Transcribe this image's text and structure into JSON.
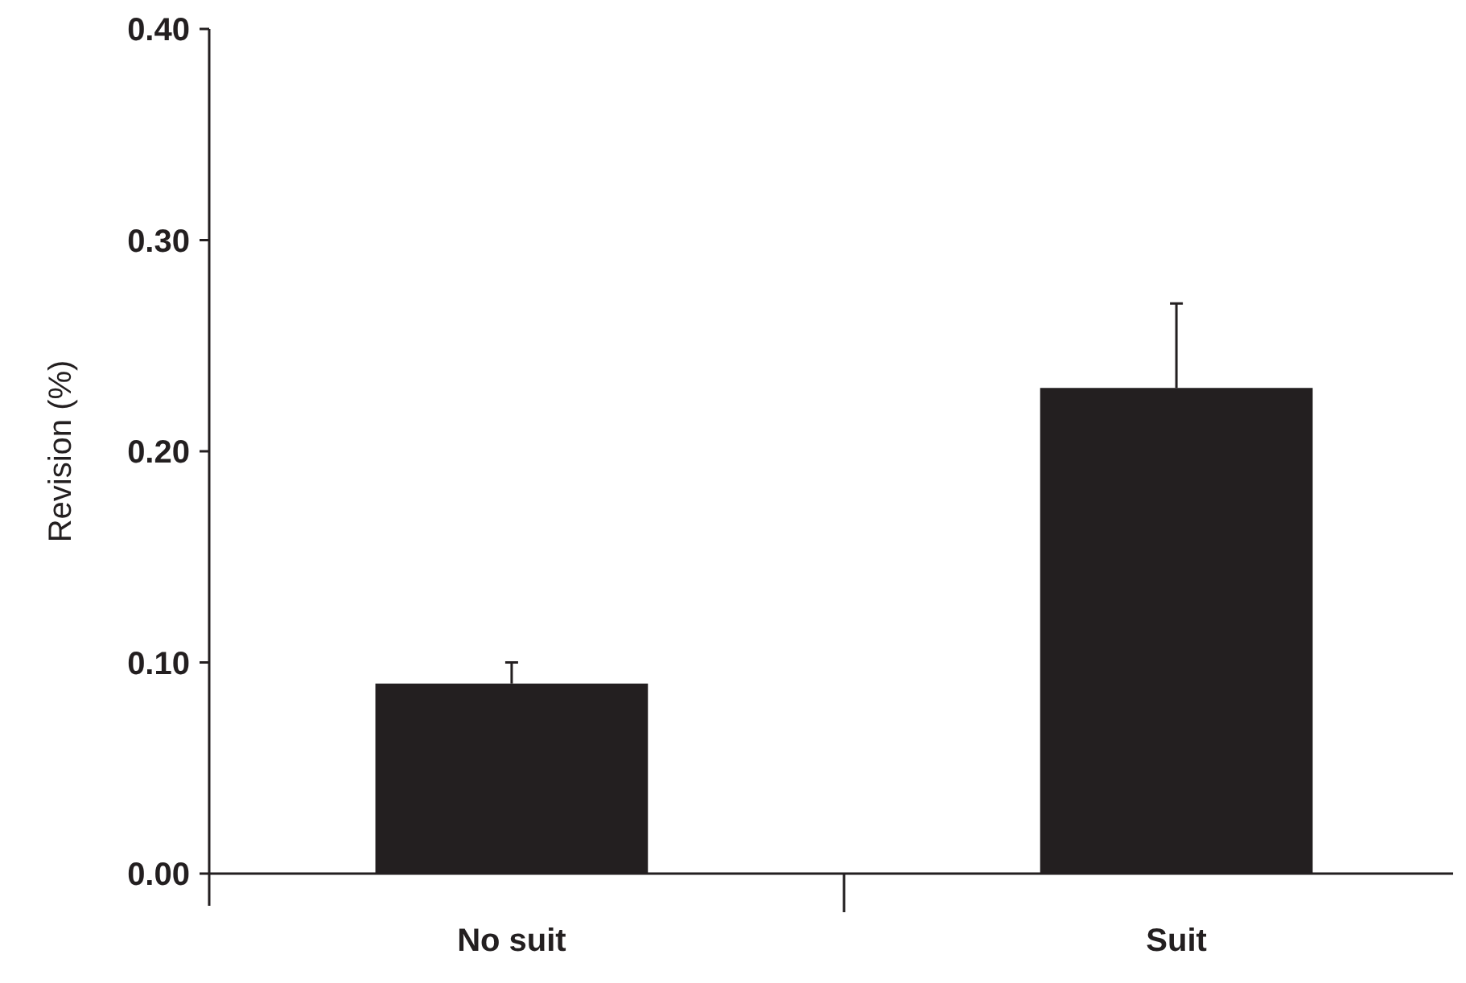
{
  "chart_data": {
    "type": "bar",
    "ylabel": "Revision (%)",
    "categories": [
      "No suit",
      "Suit"
    ],
    "values": [
      0.09,
      0.23
    ],
    "color": "#231f20",
    "errors": [
      [
        0.09,
        0.1
      ],
      [
        0.23,
        0.27
      ]
    ],
    "ylim": [
      0,
      0.4
    ],
    "yticks": [
      {
        "value": 0,
        "label": "0.00"
      },
      {
        "value": 0.1,
        "label": "0.10"
      },
      {
        "value": 0.2,
        "label": "0.20"
      },
      {
        "value": 0.3,
        "label": "0.30"
      },
      {
        "value": 0.4,
        "label": "0.40"
      }
    ],
    "grid": false
  }
}
